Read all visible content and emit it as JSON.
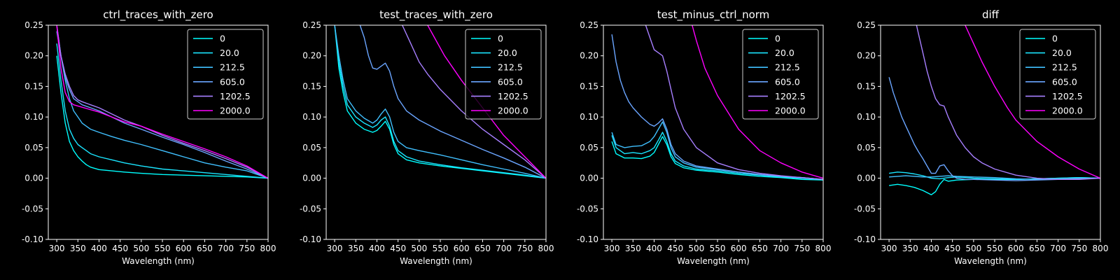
{
  "chart_data": [
    {
      "type": "line",
      "title": "ctrl_traces_with_zero",
      "xlabel": "Wavelength (nm)",
      "ylabel": "",
      "xlim": [
        280,
        800
      ],
      "ylim": [
        -0.1,
        0.25
      ],
      "legend": "top-right",
      "series": [
        {
          "name": "0",
          "color": "#00ffff",
          "x": [
            300,
            310,
            320,
            330,
            340,
            350,
            360,
            370,
            380,
            400,
            430,
            460,
            500,
            550,
            600,
            650,
            700,
            750,
            800
          ],
          "y": [
            0.2,
            0.14,
            0.09,
            0.06,
            0.045,
            0.035,
            0.028,
            0.022,
            0.018,
            0.014,
            0.012,
            0.01,
            0.008,
            0.006,
            0.005,
            0.004,
            0.003,
            0.002,
            0.0
          ]
        },
        {
          "name": "20.0",
          "color": "#1ae5ff",
          "x": [
            300,
            310,
            320,
            330,
            340,
            350,
            360,
            370,
            380,
            400,
            430,
            460,
            500,
            550,
            600,
            650,
            700,
            750,
            800
          ],
          "y": [
            0.22,
            0.16,
            0.11,
            0.08,
            0.065,
            0.055,
            0.05,
            0.045,
            0.04,
            0.035,
            0.03,
            0.025,
            0.02,
            0.015,
            0.012,
            0.009,
            0.006,
            0.003,
            0.0
          ]
        },
        {
          "name": "212.5",
          "color": "#40c0ff",
          "x": [
            300,
            310,
            320,
            330,
            340,
            350,
            360,
            380,
            400,
            430,
            460,
            500,
            550,
            600,
            650,
            700,
            750,
            800
          ],
          "y": [
            0.24,
            0.2,
            0.16,
            0.13,
            0.11,
            0.1,
            0.09,
            0.08,
            0.075,
            0.068,
            0.062,
            0.055,
            0.045,
            0.035,
            0.025,
            0.018,
            0.012,
            0.0
          ]
        },
        {
          "name": "605.0",
          "color": "#6aa5ff",
          "x": [
            300,
            310,
            320,
            330,
            340,
            350,
            360,
            380,
            400,
            430,
            460,
            500,
            550,
            600,
            650,
            700,
            750,
            800
          ],
          "y": [
            0.25,
            0.2,
            0.165,
            0.145,
            0.13,
            0.125,
            0.12,
            0.115,
            0.11,
            0.1,
            0.09,
            0.08,
            0.067,
            0.055,
            0.042,
            0.028,
            0.015,
            0.0
          ]
        },
        {
          "name": "1202.5",
          "color": "#a77fff",
          "x": [
            300,
            310,
            320,
            330,
            340,
            350,
            360,
            380,
            400,
            430,
            460,
            500,
            550,
            600,
            650,
            700,
            750,
            800
          ],
          "y": [
            0.25,
            0.2,
            0.17,
            0.15,
            0.135,
            0.128,
            0.125,
            0.12,
            0.115,
            0.105,
            0.095,
            0.085,
            0.07,
            0.057,
            0.045,
            0.032,
            0.018,
            0.0
          ]
        },
        {
          "name": "2000.0",
          "color": "#ff00ff",
          "x": [
            300,
            310,
            320,
            330,
            340,
            350,
            360,
            380,
            400,
            430,
            460,
            500,
            550,
            600,
            650,
            700,
            750,
            800
          ],
          "y": [
            0.25,
            0.18,
            0.14,
            0.125,
            0.12,
            0.118,
            0.116,
            0.112,
            0.108,
            0.1,
            0.092,
            0.085,
            0.072,
            0.06,
            0.048,
            0.035,
            0.02,
            0.0
          ]
        }
      ]
    },
    {
      "type": "line",
      "title": "test_traces_with_zero",
      "xlabel": "Wavelength (nm)",
      "ylabel": "",
      "xlim": [
        280,
        800
      ],
      "ylim": [
        -0.1,
        0.25
      ],
      "legend": "top-right",
      "series": [
        {
          "name": "0",
          "color": "#00ffff",
          "x": [
            300,
            310,
            320,
            330,
            350,
            370,
            390,
            400,
            410,
            420,
            430,
            440,
            450,
            470,
            500,
            550,
            600,
            650,
            700,
            750,
            800
          ],
          "y": [
            0.25,
            0.18,
            0.14,
            0.11,
            0.09,
            0.08,
            0.075,
            0.078,
            0.085,
            0.093,
            0.08,
            0.055,
            0.04,
            0.03,
            0.025,
            0.02,
            0.016,
            0.012,
            0.008,
            0.004,
            0.0
          ]
        },
        {
          "name": "20.0",
          "color": "#1ae5ff",
          "x": [
            300,
            310,
            320,
            330,
            350,
            370,
            390,
            400,
            410,
            420,
            430,
            440,
            450,
            470,
            500,
            550,
            600,
            650,
            700,
            750,
            800
          ],
          "y": [
            0.25,
            0.19,
            0.15,
            0.12,
            0.1,
            0.09,
            0.083,
            0.087,
            0.095,
            0.1,
            0.085,
            0.06,
            0.045,
            0.035,
            0.028,
            0.022,
            0.017,
            0.013,
            0.009,
            0.005,
            0.0
          ]
        },
        {
          "name": "212.5",
          "color": "#40c0ff",
          "x": [
            300,
            310,
            320,
            330,
            350,
            370,
            390,
            400,
            410,
            420,
            430,
            440,
            450,
            470,
            500,
            550,
            600,
            650,
            700,
            750,
            800
          ],
          "y": [
            0.25,
            0.2,
            0.16,
            0.13,
            0.11,
            0.098,
            0.09,
            0.095,
            0.105,
            0.113,
            0.1,
            0.075,
            0.06,
            0.05,
            0.045,
            0.038,
            0.03,
            0.022,
            0.015,
            0.008,
            0.0
          ]
        },
        {
          "name": "605.0",
          "color": "#6aa5ff",
          "x": [
            360,
            370,
            380,
            390,
            400,
            410,
            420,
            430,
            440,
            450,
            470,
            500,
            550,
            600,
            650,
            700,
            750,
            800
          ],
          "y": [
            0.25,
            0.23,
            0.2,
            0.18,
            0.178,
            0.183,
            0.188,
            0.175,
            0.15,
            0.13,
            0.11,
            0.095,
            0.077,
            0.062,
            0.047,
            0.033,
            0.018,
            0.0
          ]
        },
        {
          "name": "1202.5",
          "color": "#a77fff",
          "x": [
            460,
            480,
            500,
            520,
            550,
            600,
            650,
            700,
            750,
            800
          ],
          "y": [
            0.25,
            0.22,
            0.19,
            0.17,
            0.145,
            0.11,
            0.08,
            0.055,
            0.03,
            0.0
          ]
        },
        {
          "name": "2000.0",
          "color": "#ff00ff",
          "x": [
            520,
            540,
            560,
            580,
            600,
            650,
            700,
            750,
            800
          ],
          "y": [
            0.25,
            0.225,
            0.2,
            0.18,
            0.16,
            0.115,
            0.07,
            0.035,
            0.0
          ]
        }
      ]
    },
    {
      "type": "line",
      "title": "test_minus_ctrl_norm",
      "xlabel": "Wavelength (nm)",
      "ylabel": "",
      "xlim": [
        280,
        800
      ],
      "ylim": [
        -0.1,
        0.25
      ],
      "legend": "top-right",
      "series": [
        {
          "name": "0",
          "color": "#00ffff",
          "x": [
            300,
            310,
            330,
            350,
            370,
            390,
            400,
            410,
            420,
            430,
            440,
            450,
            470,
            500,
            550,
            600,
            650,
            700,
            750,
            800
          ],
          "y": [
            0.06,
            0.04,
            0.033,
            0.033,
            0.032,
            0.036,
            0.042,
            0.055,
            0.068,
            0.055,
            0.035,
            0.024,
            0.017,
            0.013,
            0.01,
            0.006,
            0.003,
            0.001,
            -0.002,
            -0.003
          ]
        },
        {
          "name": "20.0",
          "color": "#1ae5ff",
          "x": [
            300,
            310,
            330,
            350,
            370,
            390,
            400,
            410,
            420,
            430,
            440,
            450,
            470,
            500,
            550,
            600,
            650,
            700,
            750,
            800
          ],
          "y": [
            0.07,
            0.05,
            0.04,
            0.042,
            0.04,
            0.045,
            0.05,
            0.062,
            0.075,
            0.06,
            0.04,
            0.028,
            0.02,
            0.015,
            0.012,
            0.008,
            0.005,
            0.002,
            0.0,
            -0.002
          ]
        },
        {
          "name": "212.5",
          "color": "#40c0ff",
          "x": [
            300,
            310,
            330,
            350,
            370,
            390,
            400,
            410,
            420,
            430,
            440,
            450,
            470,
            500,
            550,
            600,
            650,
            700,
            750,
            800
          ],
          "y": [
            0.075,
            0.055,
            0.05,
            0.052,
            0.053,
            0.06,
            0.068,
            0.08,
            0.092,
            0.075,
            0.05,
            0.035,
            0.025,
            0.018,
            0.014,
            0.01,
            0.006,
            0.003,
            0.001,
            -0.002
          ]
        },
        {
          "name": "605.0",
          "color": "#6aa5ff",
          "x": [
            300,
            310,
            320,
            330,
            340,
            350,
            370,
            390,
            400,
            410,
            420,
            430,
            440,
            450,
            470,
            500,
            550,
            600,
            650,
            700,
            750,
            800
          ],
          "y": [
            0.235,
            0.19,
            0.16,
            0.14,
            0.125,
            0.115,
            0.1,
            0.088,
            0.085,
            0.09,
            0.097,
            0.08,
            0.055,
            0.04,
            0.028,
            0.02,
            0.015,
            0.01,
            0.006,
            0.003,
            0.001,
            -0.002
          ]
        },
        {
          "name": "1202.5",
          "color": "#a77fff",
          "x": [
            380,
            390,
            400,
            410,
            420,
            430,
            440,
            450,
            470,
            500,
            550,
            600,
            650,
            700,
            750,
            800
          ],
          "y": [
            0.25,
            0.23,
            0.21,
            0.205,
            0.2,
            0.175,
            0.145,
            0.115,
            0.08,
            0.05,
            0.025,
            0.014,
            0.008,
            0.004,
            0.001,
            -0.002
          ]
        },
        {
          "name": "2000.0",
          "color": "#ff00ff",
          "x": [
            490,
            500,
            520,
            550,
            600,
            650,
            700,
            750,
            800
          ],
          "y": [
            0.25,
            0.225,
            0.18,
            0.135,
            0.08,
            0.045,
            0.025,
            0.01,
            0.0
          ]
        }
      ]
    },
    {
      "type": "line",
      "title": "diff",
      "xlabel": "Wavelength (nm)",
      "ylabel": "",
      "xlim": [
        280,
        800
      ],
      "ylim": [
        -0.1,
        0.25
      ],
      "legend": "top-right",
      "series": [
        {
          "name": "0",
          "color": "#00ffff",
          "x": [
            300,
            320,
            340,
            360,
            380,
            400,
            410,
            420,
            430,
            440,
            460,
            500,
            550,
            600,
            650,
            700,
            750,
            800
          ],
          "y": [
            -0.012,
            -0.01,
            -0.012,
            -0.015,
            -0.02,
            -0.027,
            -0.022,
            -0.01,
            -0.002,
            -0.005,
            -0.003,
            -0.002,
            -0.002,
            -0.002,
            -0.001,
            0.0,
            0.001,
            0.0
          ]
        },
        {
          "name": "20.0",
          "color": "#1ae5ff",
          "x": [
            300,
            320,
            340,
            360,
            380,
            400,
            420,
            440,
            460,
            500,
            550,
            600,
            650,
            700,
            750,
            800
          ],
          "y": [
            0.008,
            0.01,
            0.009,
            0.007,
            0.004,
            0.0,
            -0.001,
            0.001,
            0.002,
            0.0,
            -0.001,
            -0.002,
            -0.001,
            0.0,
            0.001,
            0.0
          ]
        },
        {
          "name": "212.5",
          "color": "#40c0ff",
          "x": [
            300,
            320,
            340,
            360,
            380,
            400,
            420,
            440,
            460,
            500,
            550,
            600,
            650,
            700,
            750,
            800
          ],
          "y": [
            0.002,
            0.003,
            0.004,
            0.003,
            0.002,
            0.002,
            0.003,
            0.004,
            0.003,
            0.002,
            0.001,
            -0.001,
            -0.002,
            -0.001,
            0.0,
            0.0
          ]
        },
        {
          "name": "605.0",
          "color": "#6aa5ff",
          "x": [
            300,
            310,
            320,
            330,
            340,
            350,
            360,
            370,
            380,
            390,
            400,
            410,
            420,
            430,
            440,
            450,
            460,
            480,
            500,
            550,
            600,
            650,
            700,
            750,
            800
          ],
          "y": [
            0.165,
            0.14,
            0.12,
            0.1,
            0.085,
            0.07,
            0.055,
            0.043,
            0.032,
            0.02,
            0.008,
            0.008,
            0.02,
            0.022,
            0.012,
            0.004,
            0.0,
            -0.002,
            -0.002,
            -0.003,
            -0.004,
            -0.003,
            -0.002,
            -0.001,
            0.0
          ]
        },
        {
          "name": "1202.5",
          "color": "#a77fff",
          "x": [
            365,
            370,
            380,
            390,
            400,
            410,
            420,
            430,
            440,
            450,
            460,
            480,
            500,
            520,
            550,
            600,
            650,
            700,
            750,
            800
          ],
          "y": [
            0.25,
            0.235,
            0.205,
            0.175,
            0.15,
            0.13,
            0.12,
            0.118,
            0.1,
            0.085,
            0.07,
            0.05,
            0.035,
            0.025,
            0.015,
            0.005,
            0.0,
            -0.002,
            -0.002,
            0.0
          ]
        },
        {
          "name": "2000.0",
          "color": "#ff00ff",
          "x": [
            480,
            500,
            520,
            550,
            580,
            600,
            650,
            700,
            750,
            800
          ],
          "y": [
            0.25,
            0.22,
            0.19,
            0.15,
            0.115,
            0.095,
            0.06,
            0.035,
            0.015,
            0.0
          ]
        }
      ]
    }
  ]
}
